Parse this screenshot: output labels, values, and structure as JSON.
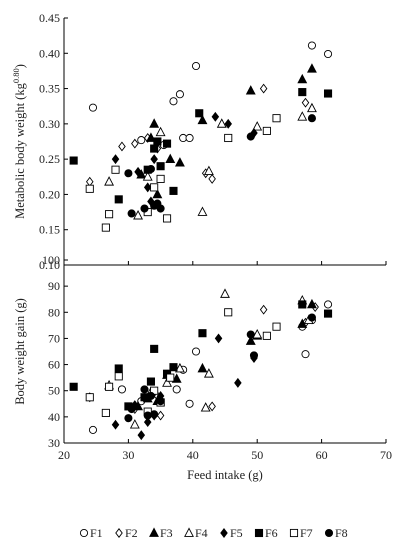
{
  "chart_data": [
    {
      "type": "scatter",
      "ylabel": "Metabolic body weight (kg",
      "ylabel_sup": "0.80",
      "ylabel_close": ")",
      "xlabel": "",
      "xlim": [
        20,
        70
      ],
      "ylim": [
        0.1,
        0.45
      ],
      "xticks": [],
      "yticks": [
        "0.10",
        "0.15",
        "0.20",
        "0.25",
        "0.30",
        "0.35",
        "0.40",
        "0.45"
      ],
      "grid": false,
      "series": [
        {
          "name": "F1",
          "marker": "circle-open",
          "points": [
            [
              24.5,
              0.323
            ],
            [
              32.0,
              0.277
            ],
            [
              35.5,
              0.27
            ],
            [
              37.0,
              0.332
            ],
            [
              38.0,
              0.342
            ],
            [
              38.5,
              0.28
            ],
            [
              39.5,
              0.28
            ],
            [
              40.5,
              0.382
            ],
            [
              58.5,
              0.411
            ],
            [
              61.0,
              0.399
            ]
          ]
        },
        {
          "name": "F2",
          "marker": "diamond-open",
          "points": [
            [
              24.0,
              0.218
            ],
            [
              29.0,
              0.268
            ],
            [
              31.0,
              0.272
            ],
            [
              33.0,
              0.28
            ],
            [
              34.5,
              0.265
            ],
            [
              42.0,
              0.23
            ],
            [
              43.0,
              0.222
            ],
            [
              51.0,
              0.35
            ],
            [
              57.5,
              0.33
            ]
          ]
        },
        {
          "name": "F3",
          "marker": "triangle-filled",
          "points": [
            [
              32.0,
              0.228
            ],
            [
              33.5,
              0.28
            ],
            [
              34.0,
              0.3
            ],
            [
              34.5,
              0.2
            ],
            [
              36.5,
              0.25
            ],
            [
              38.0,
              0.245
            ],
            [
              41.5,
              0.305
            ],
            [
              49.0,
              0.347
            ],
            [
              57.0,
              0.363
            ],
            [
              58.5,
              0.378
            ]
          ]
        },
        {
          "name": "F4",
          "marker": "triangle-open",
          "points": [
            [
              27.0,
              0.218
            ],
            [
              31.5,
              0.17
            ],
            [
              33.0,
              0.225
            ],
            [
              35.0,
              0.288
            ],
            [
              41.5,
              0.175
            ],
            [
              42.5,
              0.233
            ],
            [
              44.5,
              0.3
            ],
            [
              50.0,
              0.296
            ],
            [
              57.0,
              0.31
            ],
            [
              58.5,
              0.322
            ]
          ]
        },
        {
          "name": "F5",
          "marker": "diamond-filled",
          "points": [
            [
              28.0,
              0.25
            ],
            [
              31.5,
              0.232
            ],
            [
              33.0,
              0.21
            ],
            [
              33.5,
              0.19
            ],
            [
              34.0,
              0.25
            ],
            [
              43.5,
              0.31
            ],
            [
              45.5,
              0.3
            ],
            [
              49.5,
              0.287
            ]
          ]
        },
        {
          "name": "F6",
          "marker": "square-filled",
          "points": [
            [
              21.5,
              0.248
            ],
            [
              28.5,
              0.193
            ],
            [
              33.0,
              0.235
            ],
            [
              34.0,
              0.265
            ],
            [
              34.5,
              0.275
            ],
            [
              35.0,
              0.24
            ],
            [
              36.0,
              0.272
            ],
            [
              37.0,
              0.205
            ],
            [
              41.0,
              0.315
            ],
            [
              57.0,
              0.345
            ],
            [
              61.0,
              0.343
            ]
          ]
        },
        {
          "name": "F7",
          "marker": "square-open",
          "points": [
            [
              24.0,
              0.208
            ],
            [
              26.5,
              0.153
            ],
            [
              27.0,
              0.172
            ],
            [
              28.0,
              0.235
            ],
            [
              33.0,
              0.175
            ],
            [
              34.0,
              0.21
            ],
            [
              35.0,
              0.222
            ],
            [
              36.0,
              0.166
            ],
            [
              45.5,
              0.28
            ],
            [
              51.5,
              0.29
            ],
            [
              53.0,
              0.308
            ]
          ]
        },
        {
          "name": "F8",
          "marker": "circle-filled",
          "points": [
            [
              30.0,
              0.23
            ],
            [
              30.5,
              0.173
            ],
            [
              32.5,
              0.18
            ],
            [
              33.5,
              0.236
            ],
            [
              34.0,
              0.184
            ],
            [
              34.5,
              0.187
            ],
            [
              35.0,
              0.18
            ],
            [
              49.0,
              0.282
            ],
            [
              58.5,
              0.308
            ]
          ]
        }
      ]
    },
    {
      "type": "scatter",
      "ylabel": "Body weight gain (g)",
      "xlabel": "Feed intake (g)",
      "xlim": [
        20,
        70
      ],
      "ylim": [
        30,
        100
      ],
      "xticks": [
        "20",
        "30",
        "40",
        "50",
        "60",
        "70"
      ],
      "yticks": [
        "30",
        "40",
        "50",
        "60",
        "70",
        "80",
        "90",
        "100"
      ],
      "grid": false,
      "series": [
        {
          "name": "F1",
          "marker": "circle-open",
          "points": [
            [
              24.5,
              35.0
            ],
            [
              29.0,
              50.5
            ],
            [
              32.0,
              46.0
            ],
            [
              37.5,
              50.5
            ],
            [
              38.5,
              58.0
            ],
            [
              39.5,
              45.0
            ],
            [
              40.5,
              65.0
            ],
            [
              57.0,
              74.5
            ],
            [
              57.5,
              64.0
            ],
            [
              58.5,
              77.0
            ],
            [
              61.0,
              83.0
            ]
          ]
        },
        {
          "name": "F2",
          "marker": "diamond-open",
          "points": [
            [
              24.0,
              47.5
            ],
            [
              31.0,
              43.0
            ],
            [
              33.0,
              40.5
            ],
            [
              34.5,
              48.0
            ],
            [
              35.0,
              40.5
            ],
            [
              43.0,
              44.0
            ],
            [
              51.0,
              81.0
            ],
            [
              57.5,
              76.0
            ],
            [
              59.0,
              82.0
            ]
          ]
        },
        {
          "name": "F3",
          "marker": "triangle-filled",
          "points": [
            [
              31.5,
              44.0
            ],
            [
              33.0,
              47.0
            ],
            [
              34.5,
              46.0
            ],
            [
              36.0,
              56.0
            ],
            [
              37.5,
              54.5
            ],
            [
              41.5,
              58.5
            ],
            [
              49.0,
              69.0
            ],
            [
              50.0,
              71.0
            ],
            [
              57.0,
              75.5
            ],
            [
              58.5,
              83.0
            ]
          ]
        },
        {
          "name": "F4",
          "marker": "triangle-open",
          "points": [
            [
              27.0,
              52.0
            ],
            [
              31.0,
              37.0
            ],
            [
              33.5,
              49.5
            ],
            [
              36.0,
              53.0
            ],
            [
              38.0,
              58.5
            ],
            [
              42.0,
              43.5
            ],
            [
              42.5,
              56.5
            ],
            [
              45.0,
              87.0
            ],
            [
              50.0,
              71.5
            ],
            [
              57.0,
              84.5
            ],
            [
              58.0,
              77.0
            ]
          ]
        },
        {
          "name": "F5",
          "marker": "diamond-filled",
          "points": [
            [
              28.0,
              37.0
            ],
            [
              31.0,
              44.5
            ],
            [
              32.0,
              33.0
            ],
            [
              33.0,
              38.0
            ],
            [
              34.0,
              40.5
            ],
            [
              35.0,
              48.0
            ],
            [
              44.0,
              70.0
            ],
            [
              47.0,
              53.0
            ],
            [
              49.5,
              62.5
            ]
          ]
        },
        {
          "name": "F6",
          "marker": "square-filled",
          "points": [
            [
              21.5,
              51.5
            ],
            [
              28.5,
              58.5
            ],
            [
              30.0,
              44.0
            ],
            [
              32.5,
              47.5
            ],
            [
              33.5,
              53.5
            ],
            [
              34.0,
              66.0
            ],
            [
              35.0,
              45.5
            ],
            [
              36.0,
              56.5
            ],
            [
              37.0,
              59.0
            ],
            [
              41.5,
              72.0
            ],
            [
              57.0,
              83.0
            ],
            [
              61.0,
              79.5
            ]
          ]
        },
        {
          "name": "F7",
          "marker": "square-open",
          "points": [
            [
              24.0,
              47.5
            ],
            [
              26.5,
              41.5
            ],
            [
              27.0,
              51.5
            ],
            [
              28.5,
              55.5
            ],
            [
              33.0,
              42.0
            ],
            [
              34.0,
              50.0
            ],
            [
              35.0,
              45.5
            ],
            [
              36.5,
              55.0
            ],
            [
              45.5,
              80.0
            ],
            [
              51.5,
              71.0
            ],
            [
              53.0,
              74.5
            ]
          ]
        },
        {
          "name": "F8",
          "marker": "circle-filled",
          "points": [
            [
              30.0,
              39.5
            ],
            [
              30.5,
              43.0
            ],
            [
              32.5,
              50.5
            ],
            [
              33.0,
              40.5
            ],
            [
              33.5,
              48.0
            ],
            [
              34.0,
              41.0
            ],
            [
              35.0,
              46.0
            ],
            [
              49.0,
              71.5
            ],
            [
              49.5,
              63.5
            ],
            [
              58.5,
              78.0
            ]
          ]
        }
      ]
    }
  ],
  "legend": {
    "placement": "bottom",
    "items": [
      {
        "label": "F1",
        "marker": "circle-open"
      },
      {
        "label": "F2",
        "marker": "diamond-open"
      },
      {
        "label": "F3",
        "marker": "triangle-filled"
      },
      {
        "label": "F4",
        "marker": "triangle-open"
      },
      {
        "label": "F5",
        "marker": "diamond-filled"
      },
      {
        "label": "F6",
        "marker": "square-filled"
      },
      {
        "label": "F7",
        "marker": "square-open"
      },
      {
        "label": "F8",
        "marker": "circle-filled"
      }
    ]
  },
  "colors": {
    "marker": "#000000",
    "axis": "#000000",
    "text": "#222222"
  }
}
